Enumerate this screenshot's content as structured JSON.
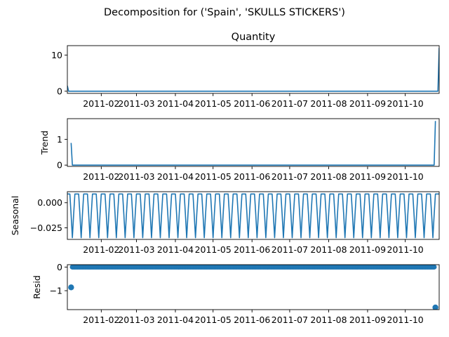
{
  "figure": {
    "suptitle": "Decomposition for ('Spain', 'SKULLS  STICKERS')"
  },
  "colors": {
    "line": "#1f77b4",
    "axes": "#000000",
    "background": "#ffffff"
  },
  "chart_data": [
    {
      "type": "line",
      "title": "Quantity",
      "ylabel": "",
      "xlabel": "",
      "xlim": [
        "2011-01-05",
        "2011-10-28"
      ],
      "ylim": [
        -0.6,
        12.6
      ],
      "yticks": [
        0,
        10
      ],
      "ytick_labels": [
        "0",
        "10"
      ],
      "xticks": [
        "2011-02-01",
        "2011-03-01",
        "2011-04-01",
        "2011-05-01",
        "2011-06-01",
        "2011-07-01",
        "2011-08-01",
        "2011-09-01",
        "2011-10-01"
      ],
      "xtick_labels": [
        "2011-02",
        "2011-03",
        "2011-04",
        "2011-05",
        "2011-06",
        "2011-07",
        "2011-08",
        "2011-09",
        "2011-10"
      ],
      "series": [
        {
          "x": [
            "2011-01-05",
            "2011-01-06",
            "2011-10-27",
            "2011-10-28"
          ],
          "y": [
            1.5,
            0,
            0,
            12
          ]
        }
      ]
    },
    {
      "type": "line",
      "title": "",
      "ylabel": "Trend",
      "xlabel": "",
      "xlim": [
        "2011-01-05",
        "2011-10-28"
      ],
      "ylim": [
        -0.05,
        1.8
      ],
      "yticks": [
        0,
        1
      ],
      "ytick_labels": [
        "0",
        "1"
      ],
      "xticks": [
        "2011-02-01",
        "2011-03-01",
        "2011-04-01",
        "2011-05-01",
        "2011-06-01",
        "2011-07-01",
        "2011-08-01",
        "2011-09-01",
        "2011-10-01"
      ],
      "xtick_labels": [
        "2011-02",
        "2011-03",
        "2011-04",
        "2011-05",
        "2011-06",
        "2011-07",
        "2011-08",
        "2011-09",
        "2011-10"
      ],
      "series": [
        {
          "x": [
            "2011-01-08",
            "2011-01-09",
            "2011-10-24",
            "2011-10-25"
          ],
          "y": [
            0.86,
            0.0,
            0.0,
            1.71
          ]
        }
      ]
    },
    {
      "type": "line",
      "title": "",
      "ylabel": "Seasonal",
      "xlabel": "",
      "xlim": [
        "2011-01-05",
        "2011-10-28"
      ],
      "ylim": [
        -0.0365,
        0.011
      ],
      "yticks": [
        0.0,
        -0.025
      ],
      "ytick_labels": [
        "0.000",
        "−0.025"
      ],
      "xticks": [
        "2011-02-01",
        "2011-03-01",
        "2011-04-01",
        "2011-05-01",
        "2011-06-01",
        "2011-07-01",
        "2011-08-01",
        "2011-09-01",
        "2011-10-01"
      ],
      "xtick_labels": [
        "2011-02",
        "2011-03",
        "2011-04",
        "2011-05",
        "2011-06",
        "2011-07",
        "2011-08",
        "2011-09",
        "2011-10"
      ],
      "period_days": 7,
      "weekly_pattern": [
        0.0087,
        0.0087,
        0.0087,
        -0.012,
        -0.0348,
        -0.012,
        0.0087
      ],
      "series_start": "2011-01-05",
      "series_end": "2011-10-28"
    },
    {
      "type": "scatter",
      "title": "",
      "ylabel": "Resid",
      "xlabel": "",
      "xlim": [
        "2011-01-05",
        "2011-10-28"
      ],
      "ylim": [
        -1.8,
        0.1
      ],
      "yticks": [
        0,
        -1
      ],
      "ytick_labels": [
        "0",
        "−1"
      ],
      "xticks": [
        "2011-02-01",
        "2011-03-01",
        "2011-04-01",
        "2011-05-01",
        "2011-06-01",
        "2011-07-01",
        "2011-08-01",
        "2011-09-01",
        "2011-10-01"
      ],
      "xtick_labels": [
        "2011-02",
        "2011-03",
        "2011-04",
        "2011-05",
        "2011-06",
        "2011-07",
        "2011-08",
        "2011-09",
        "2011-10"
      ],
      "baseline_range": [
        "2011-01-09",
        "2011-10-24"
      ],
      "baseline_value": 0.0,
      "outliers": [
        {
          "x": "2011-01-08",
          "y": -0.86
        },
        {
          "x": "2011-10-25",
          "y": -1.71
        }
      ]
    }
  ]
}
